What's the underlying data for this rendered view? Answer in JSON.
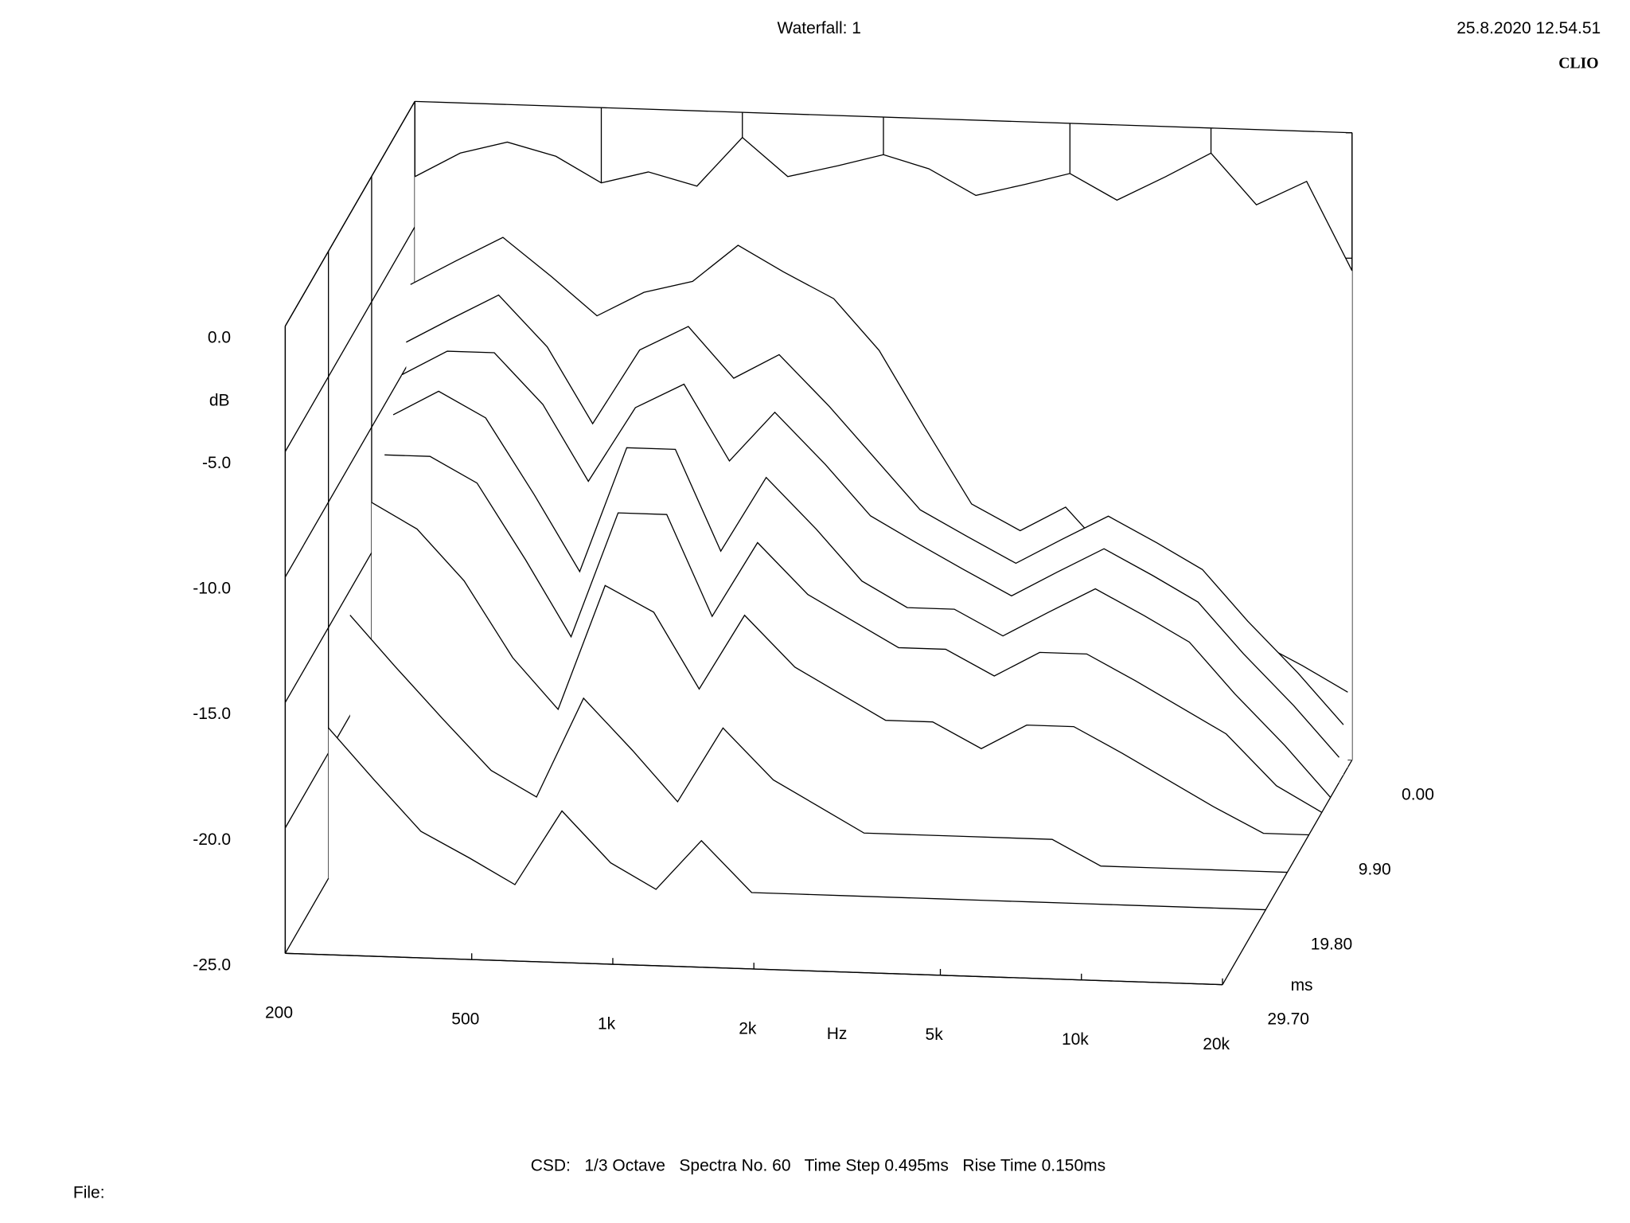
{
  "chart_data": {
    "type": "waterfall",
    "title": "Waterfall: 1",
    "xlabel": "Hz",
    "ylabel": "dB",
    "zlabel": "ms",
    "xscale": "log",
    "xlim": [
      200,
      20000
    ],
    "ylim": [
      -25,
      0
    ],
    "zlim": [
      0,
      29.7
    ],
    "xticks": [
      200,
      500,
      {
        "value": 1000,
        "label": "1k"
      },
      {
        "value": 2000,
        "label": "2k"
      },
      {
        "value": 5000,
        "label": "5k"
      },
      {
        "value": 10000,
        "label": "10k"
      },
      {
        "value": 20000,
        "label": "20k"
      }
    ],
    "yticks": [
      {
        "value": 0,
        "label": "0.0"
      },
      {
        "value": -5,
        "label": "-5.0"
      },
      {
        "value": -10,
        "label": "-10.0"
      },
      {
        "value": -15,
        "label": "-15.0"
      },
      {
        "value": -20,
        "label": "-20.0"
      },
      {
        "value": -25,
        "label": "-25.0"
      }
    ],
    "zticks": [
      {
        "value": 0,
        "label": "0.00"
      },
      {
        "value": 9.9,
        "label": "9.90"
      },
      {
        "value": 19.8,
        "label": "19.80"
      },
      {
        "value": 29.7,
        "label": "29.70"
      }
    ],
    "color": "#000000",
    "x": [
      200,
      250,
      315,
      400,
      500,
      630,
      800,
      1000,
      1250,
      1600,
      2000,
      2500,
      3150,
      4000,
      5000,
      6300,
      8000,
      10000,
      12500,
      16000,
      20000
    ],
    "series": [
      {
        "z": 0,
        "values": [
          -3,
          -2,
          -1.5,
          -2,
          -3,
          -2.5,
          -3,
          -1,
          -2.5,
          -2,
          -1.5,
          -2,
          -3,
          -2.5,
          -2,
          -3,
          -2,
          -1,
          -3,
          -2,
          -5.5
        ]
      },
      {
        "z": 0.99,
        "values": [
          -7,
          -6,
          -5,
          -6.5,
          -8,
          -7,
          -6.5,
          -5,
          -6,
          -7,
          -9,
          -12,
          -15,
          -16,
          -15,
          -17,
          -18,
          -19,
          -20,
          -21,
          -22
        ]
      },
      {
        "z": 1.98,
        "values": [
          -9,
          -8,
          -7,
          -9,
          -12,
          -9,
          -8,
          -10,
          -9,
          -11,
          -13,
          -15,
          -16,
          -17,
          -16,
          -15,
          -16,
          -17,
          -19,
          -21,
          -23
        ]
      },
      {
        "z": 2.97,
        "values": [
          -10,
          -9,
          -9,
          -11,
          -14,
          -11,
          -10,
          -13,
          -11,
          -13,
          -15,
          -16,
          -17,
          -18,
          -17,
          -16,
          -17,
          -18,
          -20,
          -22,
          -24
        ]
      },
      {
        "z": 4.95,
        "values": [
          -11,
          -10,
          -11,
          -14,
          -17,
          -12,
          -12,
          -16,
          -13,
          -15,
          -17,
          -18,
          -18,
          -19,
          -18,
          -17,
          -18,
          -19,
          -21,
          -23,
          -25
        ]
      },
      {
        "z": 6.93,
        "values": [
          -12,
          -12,
          -13,
          -16,
          -19,
          -14,
          -14,
          -18,
          -15,
          -17,
          -18,
          -19,
          -19,
          -20,
          -19,
          -19,
          -20,
          -21,
          -22,
          -24,
          -25
        ]
      },
      {
        "z": 9.9,
        "values": [
          -13,
          -14,
          -16,
          -19,
          -21,
          -16,
          -17,
          -20,
          -17,
          -19,
          -20,
          -21,
          -21,
          -22,
          -21,
          -21,
          -22,
          -23,
          -24,
          -25,
          -25
        ]
      },
      {
        "z": 14.85,
        "values": [
          -16,
          -18,
          -20,
          -22,
          -23,
          -19,
          -21,
          -23,
          -20,
          -22,
          -23,
          -24,
          -24,
          -24,
          -24,
          -24,
          -25,
          -25,
          -25,
          -25,
          -25
        ]
      },
      {
        "z": 19.8,
        "values": [
          -19,
          -21,
          -23,
          -24,
          -25,
          -22,
          -24,
          -25,
          -23,
          -25,
          -25,
          -25,
          -25,
          -25,
          -25,
          -25,
          -25,
          -25,
          -25,
          -25,
          -25
        ]
      },
      {
        "z": 29.7,
        "values": [
          -25,
          -25,
          -25,
          -25,
          -25,
          -25,
          -25,
          -25,
          -25,
          -25,
          -25,
          -25,
          -25,
          -25,
          -25,
          -25,
          -25,
          -25,
          -25,
          -25,
          -25
        ]
      }
    ]
  },
  "timestamp": "25.8.2020 12.54.51",
  "brand": "CLIO",
  "footer": "CSD:   1/3 Octave   Spectra No. 60   Time Step 0.495ms   Rise Time 0.150ms",
  "file_label": "File:"
}
